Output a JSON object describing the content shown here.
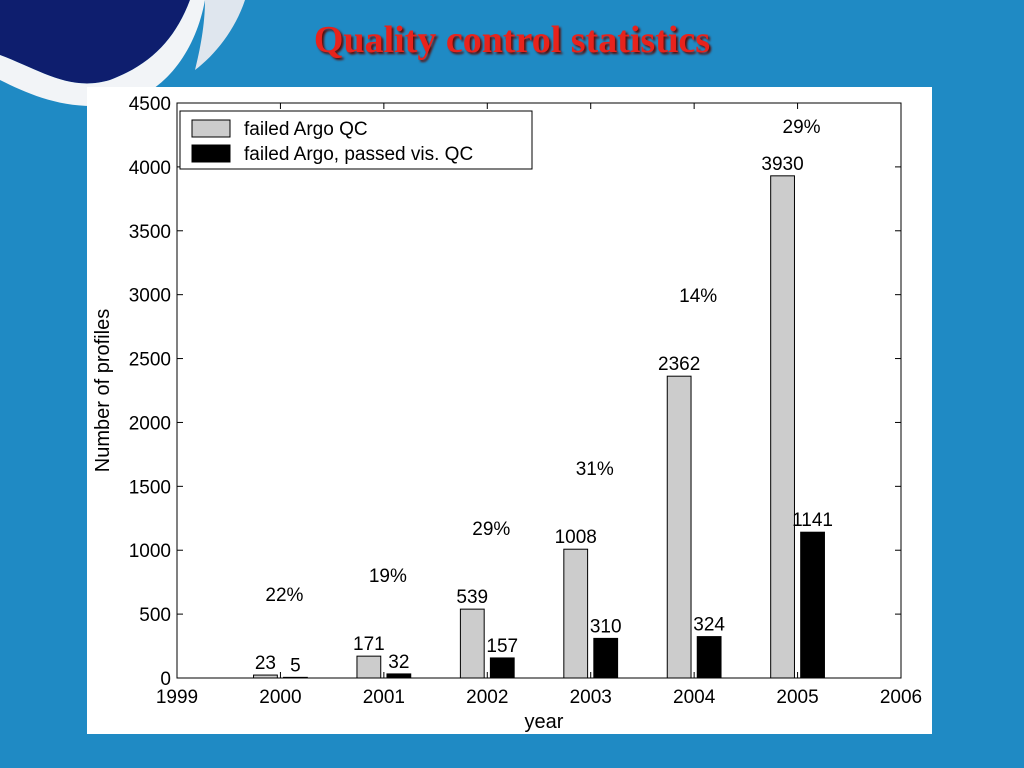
{
  "slide": {
    "title": "Quality control statistics",
    "colors": {
      "background": "#1f8ac4",
      "title": "#e8231c",
      "deco_dark": "#0e1e6e"
    }
  },
  "chart_data": {
    "type": "bar",
    "title": "",
    "xlabel": "year",
    "ylabel": "Number of profiles",
    "xlim": [
      1999,
      2006
    ],
    "ylim": [
      0,
      4500
    ],
    "xticks": [
      1999,
      2000,
      2001,
      2002,
      2003,
      2004,
      2005,
      2006
    ],
    "yticks": [
      0,
      500,
      1000,
      1500,
      2000,
      2500,
      3000,
      3500,
      4000,
      4500
    ],
    "x": [
      2000,
      2001,
      2002,
      2003,
      2004,
      2005
    ],
    "series": [
      {
        "name": "failed Argo QC",
        "color": "#cccccc",
        "values": [
          23,
          171,
          539,
          1008,
          2362,
          3930
        ]
      },
      {
        "name": "failed Argo, passed vis. QC",
        "color": "#000000",
        "values": [
          5,
          32,
          157,
          310,
          324,
          1141
        ]
      }
    ],
    "percent_labels": [
      "22%",
      "19%",
      "29%",
      "31%",
      "14%",
      "29%"
    ],
    "legend_position": "top-left",
    "grid": false
  }
}
